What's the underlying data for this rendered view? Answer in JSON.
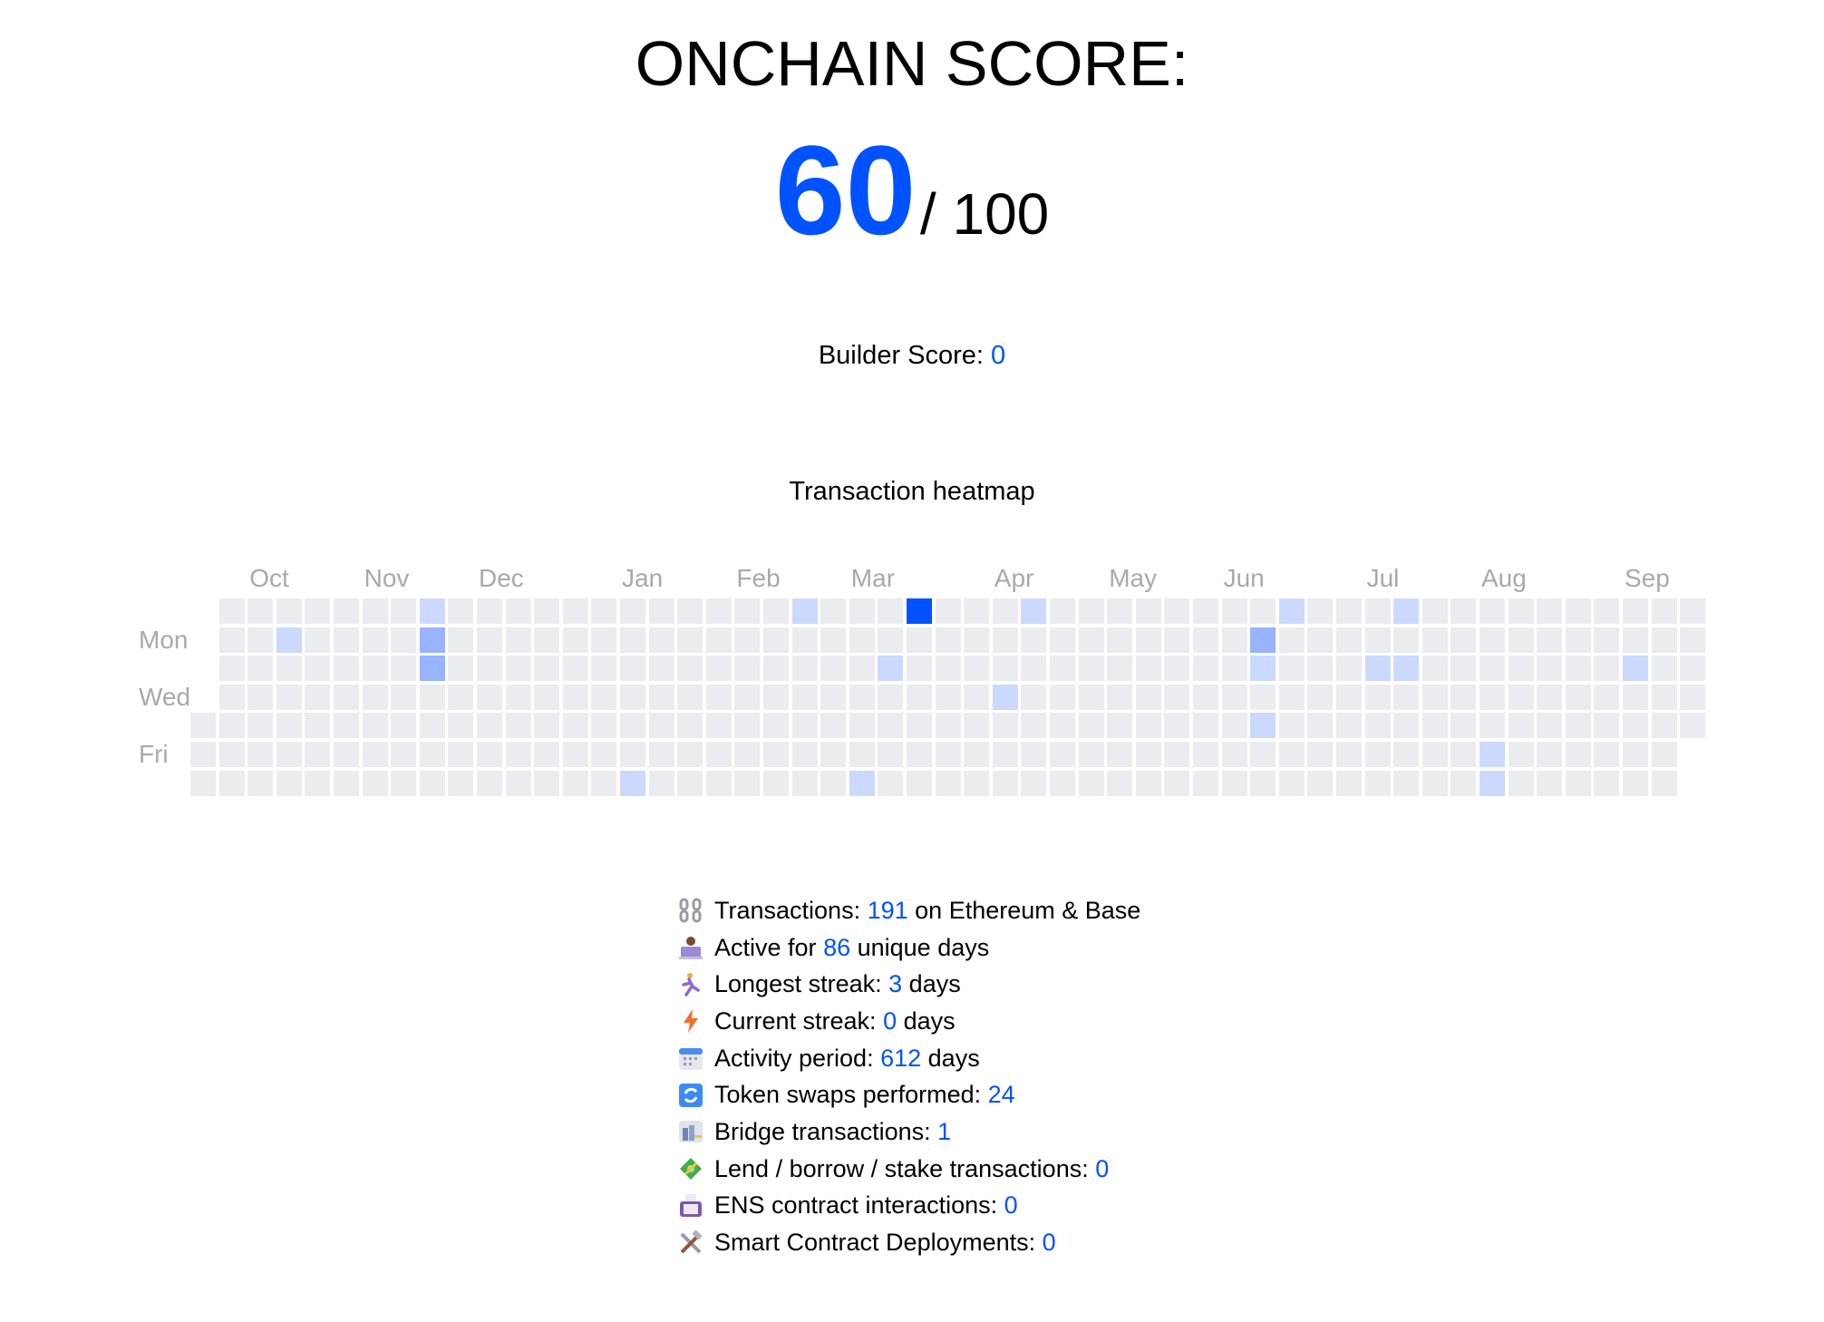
{
  "header": {
    "title": "ONCHAIN SCORE:",
    "score": "60",
    "max": "/ 100"
  },
  "builder": {
    "label": "Builder Score: ",
    "value": "0"
  },
  "heatmap": {
    "title": "Transaction heatmap",
    "months": [
      "Oct",
      "Nov",
      "Dec",
      "Jan",
      "Feb",
      "Mar",
      "Apr",
      "May",
      "Jun",
      "Jul",
      "Aug",
      "Sep"
    ],
    "day_labels": [
      {
        "row": 1,
        "label": "Mon"
      },
      {
        "row": 3,
        "label": "Wed"
      },
      {
        "row": 5,
        "label": "Fri"
      }
    ],
    "weeks": 53,
    "colors": {
      "empty": "#EBECF0",
      "1": "#CCD9FF",
      "2": "#99B3FF",
      "4": "#0052FF"
    },
    "active_cells": [
      {
        "week": 8,
        "day": 0,
        "level": 1
      },
      {
        "week": 21,
        "day": 0,
        "level": 1
      },
      {
        "week": 25,
        "day": 0,
        "level": 4
      },
      {
        "week": 29,
        "day": 0,
        "level": 1
      },
      {
        "week": 38,
        "day": 0,
        "level": 1
      },
      {
        "week": 42,
        "day": 0,
        "level": 1
      },
      {
        "week": 3,
        "day": 1,
        "level": 1
      },
      {
        "week": 8,
        "day": 1,
        "level": 2
      },
      {
        "week": 37,
        "day": 1,
        "level": 2
      },
      {
        "week": 8,
        "day": 2,
        "level": 2
      },
      {
        "week": 24,
        "day": 2,
        "level": 1
      },
      {
        "week": 37,
        "day": 2,
        "level": 1
      },
      {
        "week": 41,
        "day": 2,
        "level": 1
      },
      {
        "week": 42,
        "day": 2,
        "level": 1
      },
      {
        "week": 50,
        "day": 2,
        "level": 1
      },
      {
        "week": 28,
        "day": 3,
        "level": 1
      },
      {
        "week": 37,
        "day": 4,
        "level": 1
      },
      {
        "week": 45,
        "day": 5,
        "level": 1
      },
      {
        "week": 15,
        "day": 6,
        "level": 1
      },
      {
        "week": 23,
        "day": 6,
        "level": 1
      },
      {
        "week": 45,
        "day": 6,
        "level": 1
      }
    ]
  },
  "stats": [
    {
      "icon": "chain-icon",
      "pre": "Transactions: ",
      "value": "191",
      "post": " on Ethereum & Base"
    },
    {
      "icon": "person-laptop-icon",
      "pre": "Active for ",
      "value": "86",
      "post": " unique days"
    },
    {
      "icon": "runner-icon",
      "pre": "Longest streak: ",
      "value": "3",
      "post": " days"
    },
    {
      "icon": "lightning-icon",
      "pre": "Current streak: ",
      "value": "0",
      "post": " days"
    },
    {
      "icon": "calendar-icon",
      "pre": "Activity period: ",
      "value": "612",
      "post": " days"
    },
    {
      "icon": "swap-arrows-icon",
      "pre": "Token swaps performed: ",
      "value": "24",
      "post": ""
    },
    {
      "icon": "bridge-city-icon",
      "pre": "Bridge transactions: ",
      "value": "1",
      "post": ""
    },
    {
      "icon": "money-icon",
      "pre": "Lend / borrow / stake transactions: ",
      "value": "0",
      "post": ""
    },
    {
      "icon": "id-card-icon",
      "pre": "ENS contract interactions: ",
      "value": "0",
      "post": ""
    },
    {
      "icon": "tools-icon",
      "pre": "Smart Contract Deployments: ",
      "value": "0",
      "post": ""
    }
  ]
}
